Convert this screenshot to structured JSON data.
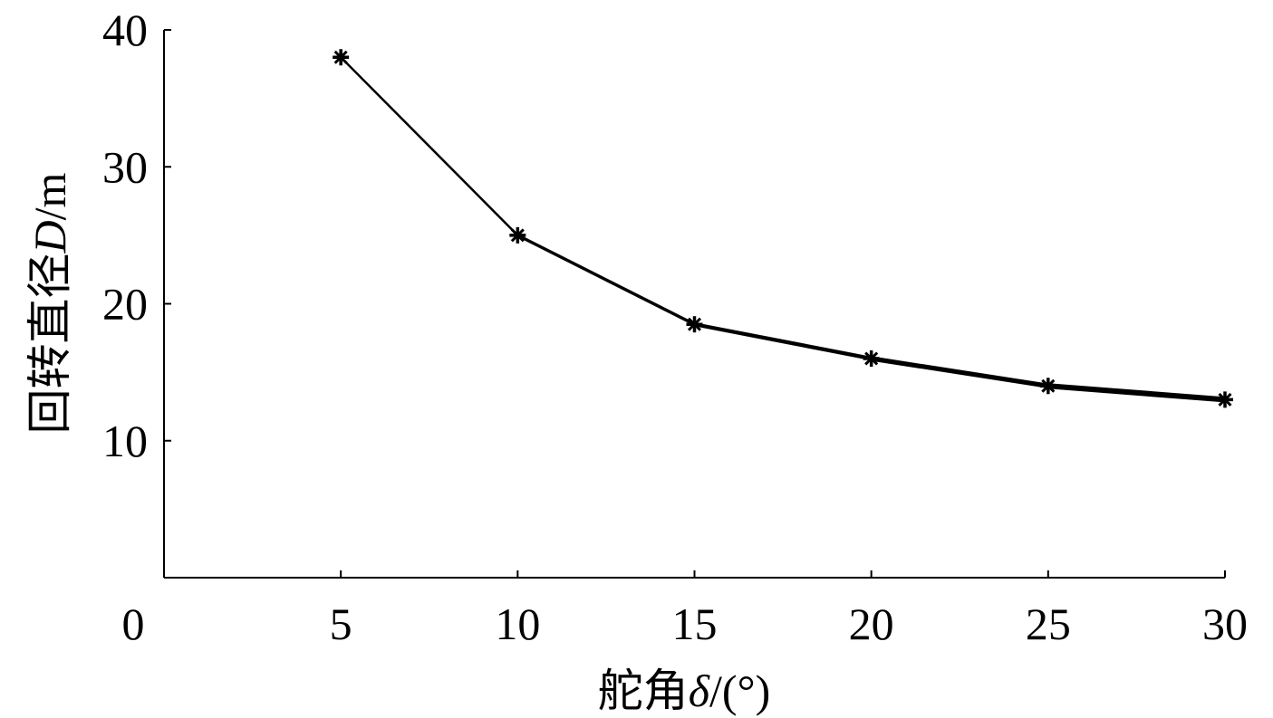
{
  "chart_data": {
    "type": "line",
    "xlabel_main": "舵角",
    "xlabel_symbol": "δ",
    "xlabel_unit": "/(°)",
    "ylabel_main": "回转直径",
    "ylabel_symbol": "D",
    "ylabel_unit": "/m",
    "xlim": [
      0,
      30
    ],
    "ylim": [
      0,
      40
    ],
    "origin_label": "0",
    "x_ticks": [
      5,
      10,
      15,
      20,
      25,
      30
    ],
    "y_ticks": [
      10,
      20,
      30,
      40
    ],
    "series": [
      {
        "x": [
          5,
          10,
          15,
          20,
          25,
          30
        ],
        "y": [
          38.0,
          25.0,
          18.5,
          16.0,
          14.0,
          13.0
        ],
        "marker": "asterisk",
        "color": "#000000"
      }
    ]
  }
}
